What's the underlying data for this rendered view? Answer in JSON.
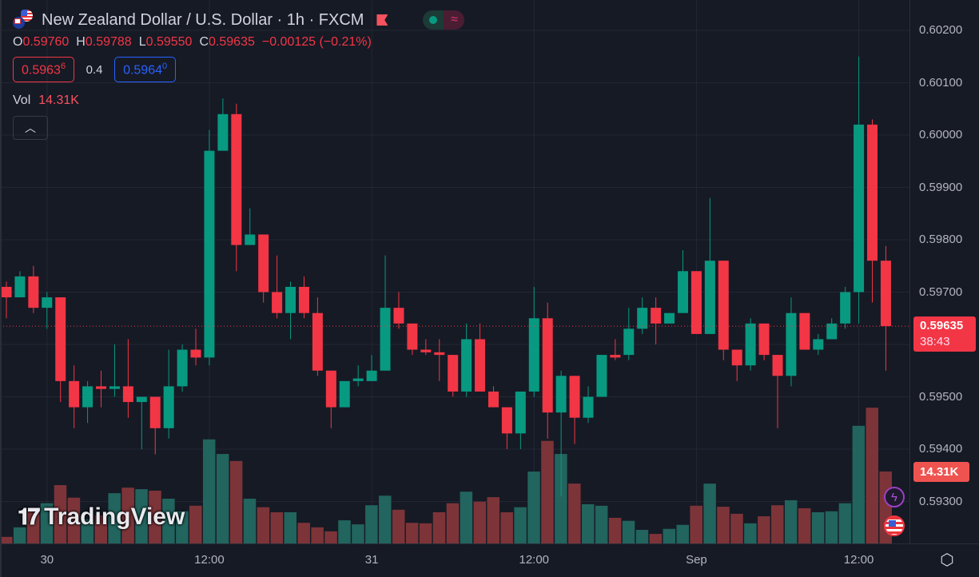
{
  "header": {
    "symbol_title": "New Zealand Dollar / U.S. Dollar · 1h · FXCM",
    "ohlc": {
      "o_label": "O",
      "o": "0.59760",
      "h_label": "H",
      "h": "0.59788",
      "l_label": "L",
      "l": "0.59550",
      "c_label": "C",
      "c": "0.59635",
      "change": "−0.00125 (−0.21%)"
    },
    "sell_price": "0.5963",
    "sell_sup": "6",
    "spread": "0.4",
    "buy_price": "0.5964",
    "buy_sup": "0",
    "vol_label": "Vol",
    "vol_value": "14.31K",
    "collapse_icon": "chevron-up-icon"
  },
  "price_tag": {
    "price": "0.59635",
    "countdown": "38:43"
  },
  "volume_tag": "14.31K",
  "logo_text": "TradingView",
  "colors": {
    "up": "#089981",
    "down": "#f23645",
    "up_vol": "#22645e",
    "down_vol": "#7d3438",
    "grid": "#232733",
    "bg": "#161a25"
  },
  "chart_data": {
    "type": "candlestick",
    "title": "New Zealand Dollar / U.S. Dollar · 1h · FXCM",
    "ylim": [
      0.5924,
      0.6025
    ],
    "y_ticks": [
      "0.60200",
      "0.60100",
      "0.60000",
      "0.59900",
      "0.59800",
      "0.59700",
      "0.59500",
      "0.59400",
      "0.59300"
    ],
    "y_tick_values": [
      0.602,
      0.601,
      0.6,
      0.599,
      0.598,
      0.597,
      0.595,
      0.594,
      0.593
    ],
    "x_ticks": [
      {
        "index": 3,
        "label": "30"
      },
      {
        "index": 15,
        "label": "12:00"
      },
      {
        "index": 27,
        "label": "31"
      },
      {
        "index": 39,
        "label": "12:00"
      },
      {
        "index": 51,
        "label": "Sep"
      },
      {
        "index": 63,
        "label": "12:00"
      }
    ],
    "last_price": 0.59635,
    "ohlc": [
      [
        0.5971,
        0.5972,
        0.5965,
        0.5969
      ],
      [
        0.5969,
        0.5974,
        0.5969,
        0.5973
      ],
      [
        0.5973,
        0.5975,
        0.5966,
        0.5967
      ],
      [
        0.5967,
        0.597,
        0.5963,
        0.5969
      ],
      [
        0.5969,
        0.5969,
        0.5949,
        0.5953
      ],
      [
        0.5953,
        0.5956,
        0.5944,
        0.5948
      ],
      [
        0.5948,
        0.5953,
        0.5945,
        0.5952
      ],
      [
        0.5952,
        0.5955,
        0.5948,
        0.59515
      ],
      [
        0.59515,
        0.596,
        0.595,
        0.5952
      ],
      [
        0.5952,
        0.5961,
        0.5946,
        0.5949
      ],
      [
        0.5949,
        0.595,
        0.594,
        0.595
      ],
      [
        0.595,
        0.595,
        0.5939,
        0.5944
      ],
      [
        0.5944,
        0.5959,
        0.5942,
        0.5952
      ],
      [
        0.5952,
        0.596,
        0.5951,
        0.5959
      ],
      [
        0.5959,
        0.5963,
        0.5956,
        0.59575
      ],
      [
        0.59575,
        0.6001,
        0.5956,
        0.5997
      ],
      [
        0.5997,
        0.6007,
        0.5997,
        0.6004
      ],
      [
        0.6004,
        0.6006,
        0.5974,
        0.5979
      ],
      [
        0.5979,
        0.5986,
        0.5979,
        0.5981
      ],
      [
        0.5981,
        0.5981,
        0.5968,
        0.597
      ],
      [
        0.597,
        0.5977,
        0.5965,
        0.5966
      ],
      [
        0.5966,
        0.5972,
        0.5961,
        0.5971
      ],
      [
        0.5971,
        0.5973,
        0.5965,
        0.5966
      ],
      [
        0.5966,
        0.5969,
        0.5954,
        0.5955
      ],
      [
        0.5955,
        0.5955,
        0.5944,
        0.5948
      ],
      [
        0.5948,
        0.5953,
        0.5948,
        0.5953
      ],
      [
        0.5953,
        0.5956,
        0.5952,
        0.59535
      ],
      [
        0.5953,
        0.5958,
        0.5953,
        0.5955
      ],
      [
        0.5955,
        0.5977,
        0.5955,
        0.5967
      ],
      [
        0.5967,
        0.597,
        0.5963,
        0.5964
      ],
      [
        0.5964,
        0.5964,
        0.5958,
        0.5959
      ],
      [
        0.5959,
        0.5961,
        0.5958,
        0.59585
      ],
      [
        0.59585,
        0.5961,
        0.5953,
        0.5958
      ],
      [
        0.5958,
        0.5958,
        0.595,
        0.5951
      ],
      [
        0.5951,
        0.5964,
        0.595,
        0.5961
      ],
      [
        0.5961,
        0.5964,
        0.5951,
        0.5951
      ],
      [
        0.5951,
        0.5952,
        0.5948,
        0.5948
      ],
      [
        0.5948,
        0.5948,
        0.594,
        0.5943
      ],
      [
        0.5943,
        0.5951,
        0.594,
        0.5951
      ],
      [
        0.5951,
        0.5971,
        0.595,
        0.5965
      ],
      [
        0.5965,
        0.5968,
        0.5942,
        0.5947
      ],
      [
        0.5947,
        0.5955,
        0.5931,
        0.5954
      ],
      [
        0.5954,
        0.5954,
        0.5941,
        0.5946
      ],
      [
        0.5946,
        0.5952,
        0.5945,
        0.595
      ],
      [
        0.595,
        0.5958,
        0.595,
        0.5958
      ],
      [
        0.5958,
        0.5961,
        0.5957,
        0.59575
      ],
      [
        0.5958,
        0.5967,
        0.5957,
        0.5963
      ],
      [
        0.5963,
        0.5969,
        0.5962,
        0.5967
      ],
      [
        0.5967,
        0.5969,
        0.596,
        0.5964
      ],
      [
        0.5964,
        0.5966,
        0.5964,
        0.5966
      ],
      [
        0.5966,
        0.5978,
        0.5966,
        0.5974
      ],
      [
        0.5974,
        0.5974,
        0.5962,
        0.5962
      ],
      [
        0.5962,
        0.5988,
        0.5962,
        0.5976
      ],
      [
        0.5976,
        0.5976,
        0.5957,
        0.5959
      ],
      [
        0.5959,
        0.5959,
        0.5953,
        0.5956
      ],
      [
        0.5956,
        0.5965,
        0.5955,
        0.5964
      ],
      [
        0.5964,
        0.5964,
        0.5957,
        0.5958
      ],
      [
        0.5958,
        0.5958,
        0.5944,
        0.5954
      ],
      [
        0.5954,
        0.5969,
        0.5952,
        0.5966
      ],
      [
        0.5966,
        0.5966,
        0.5959,
        0.5959
      ],
      [
        0.5959,
        0.5962,
        0.5958,
        0.5961
      ],
      [
        0.5961,
        0.5965,
        0.5961,
        0.5964
      ],
      [
        0.5964,
        0.5971,
        0.5963,
        0.597
      ],
      [
        0.597,
        0.6015,
        0.5964,
        0.6002
      ],
      [
        0.6002,
        0.6003,
        0.5968,
        0.5976
      ],
      [
        0.5976,
        0.59788,
        0.5955,
        0.59635
      ]
    ],
    "volume_k": [
      1.3,
      3.2,
      6.4,
      8.0,
      11.6,
      9.1,
      4.8,
      5.6,
      10.0,
      11.1,
      10.8,
      10.5,
      8.9,
      6.4,
      7.5,
      20.7,
      17.8,
      16.4,
      8.9,
      7.2,
      6.2,
      6.2,
      4.1,
      3.2,
      2.4,
      4.6,
      3.8,
      7.6,
      9.5,
      6.7,
      4.1,
      4.0,
      6.2,
      8.0,
      10.3,
      8.3,
      9.2,
      6.2,
      7.2,
      14.3,
      20.4,
      17.8,
      11.9,
      7.8,
      7.5,
      5.1,
      4.5,
      2.7,
      1.9,
      2.9,
      3.7,
      7.5,
      11.9,
      7.3,
      5.9,
      4.0,
      5.4,
      7.6,
      8.6,
      7.0,
      6.2,
      6.4,
      8.0,
      23.4,
      27.0,
      14.31
    ]
  }
}
